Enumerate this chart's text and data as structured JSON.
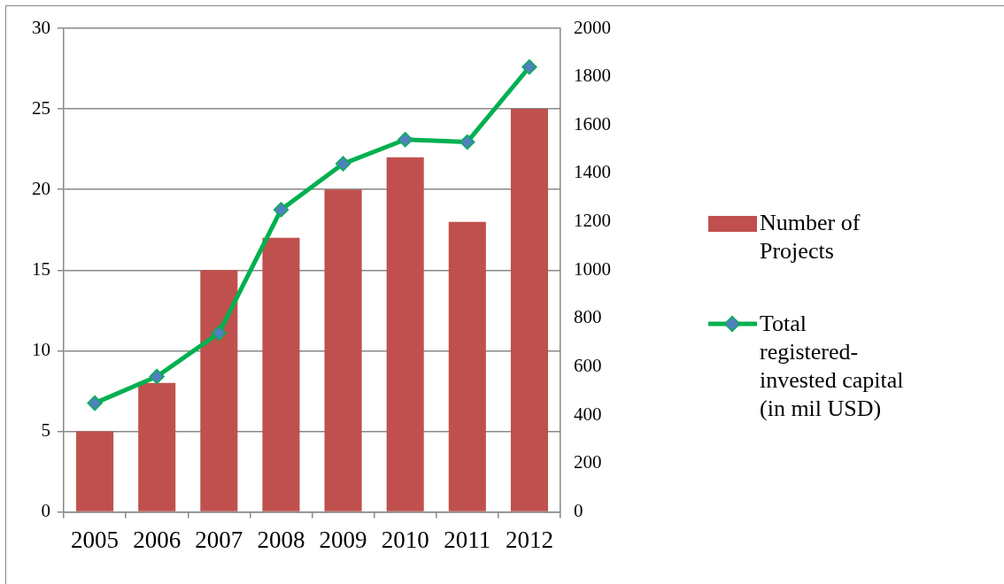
{
  "chart_data": {
    "type": "bar",
    "categories": [
      "2005",
      "2006",
      "2007",
      "2008",
      "2009",
      "2010",
      "2011",
      "2012"
    ],
    "series": [
      {
        "name": "Number of Projects",
        "color": "#c0504d",
        "values": [
          5,
          8,
          15,
          17,
          20,
          22,
          18,
          25
        ]
      },
      {
        "name": "Total registered-invested capital (in mil USD)",
        "type": "line",
        "axis": "y2",
        "color": "#00b050",
        "values": [
          450,
          560,
          740,
          1250,
          1440,
          1540,
          1530,
          1840
        ]
      }
    ],
    "ylim": [
      0,
      30
    ],
    "yticks": [
      0,
      5,
      10,
      15,
      20,
      25,
      30
    ],
    "y2lim": [
      0,
      2000
    ],
    "y2ticks": [
      0,
      200,
      400,
      600,
      800,
      1000,
      1200,
      1400,
      1600,
      1800,
      2000
    ],
    "grid": "y",
    "legend": "right",
    "marker": "diamond",
    "line_style": "solid"
  }
}
